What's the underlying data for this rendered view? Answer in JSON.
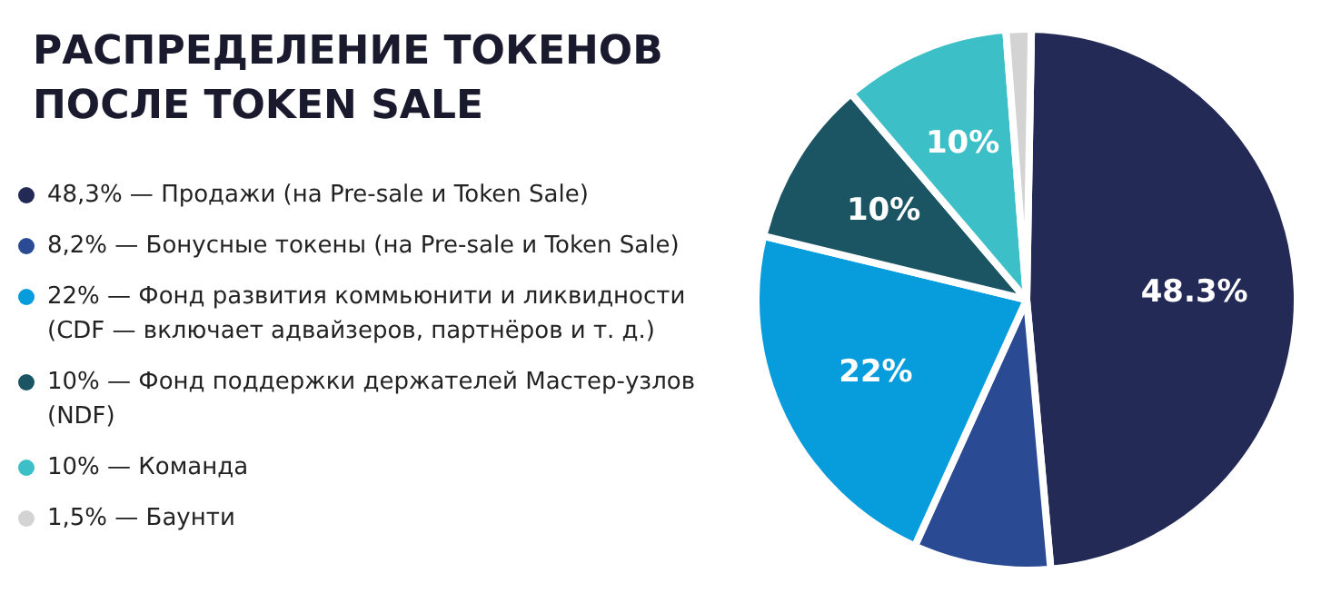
{
  "chart_data": {
    "type": "pie",
    "title": "РАСПРЕДЕЛЕНИЕ ТОКЕНОВ ПОСЛЕ TOKEN SALE",
    "categories": [
      "48,3% — Продажи (на Pre-sale и Token Sale)",
      "8,2% — Бонусные токены (на Pre-sale и Token Sale)",
      "22% — Фонд развития коммьюнити и ликвидности (CDF — включает адвайзеров, партнёров и т. д.)",
      "10% — Фонд поддержки держателей Мастер-узлов (NDF)",
      "10% — Команда",
      "1,5% — Баунти"
    ],
    "values": [
      48.3,
      8.2,
      22,
      10,
      10,
      1.5
    ],
    "value_labels": [
      "48.3%",
      null,
      "22%",
      "10%",
      "10%",
      null
    ],
    "colors": [
      "#232a55",
      "#2a4a94",
      "#079cdc",
      "#1b5564",
      "#3cbfc6",
      "#d3d3d3"
    ],
    "legend": "left"
  }
}
